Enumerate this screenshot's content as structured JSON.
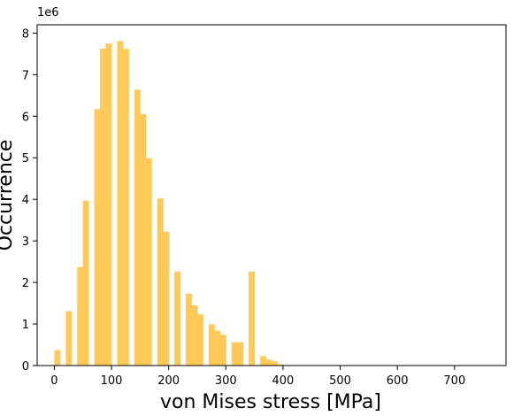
{
  "chart_data": {
    "type": "bar",
    "subtype": "histogram",
    "xlabel": "von Mises stress [MPa]",
    "ylabel": "Occurrence",
    "y_offset_label": "1e6",
    "bar_color": "#FFC857",
    "bin_width": 10,
    "xlim": [
      -30,
      790
    ],
    "ylim": [
      0,
      8.2
    ],
    "xticks": [
      0,
      100,
      200,
      300,
      400,
      500,
      600,
      700
    ],
    "yticks": [
      0,
      1,
      2,
      3,
      4,
      5,
      6,
      7,
      8
    ],
    "bins": [
      {
        "x0": 0,
        "x1": 10,
        "value": 0.37
      },
      {
        "x0": 10,
        "x1": 20,
        "value": 0.01
      },
      {
        "x0": 20,
        "x1": 30,
        "value": 1.31
      },
      {
        "x0": 30,
        "x1": 40,
        "value": 0.01
      },
      {
        "x0": 40,
        "x1": 50,
        "value": 2.37
      },
      {
        "x0": 50,
        "x1": 60,
        "value": 3.97
      },
      {
        "x0": 60,
        "x1": 70,
        "value": 0.01
      },
      {
        "x0": 70,
        "x1": 80,
        "value": 6.17
      },
      {
        "x0": 80,
        "x1": 90,
        "value": 7.63
      },
      {
        "x0": 90,
        "x1": 100,
        "value": 7.75
      },
      {
        "x0": 100,
        "x1": 110,
        "value": 0.01
      },
      {
        "x0": 110,
        "x1": 120,
        "value": 7.81
      },
      {
        "x0": 120,
        "x1": 130,
        "value": 7.62
      },
      {
        "x0": 130,
        "x1": 140,
        "value": 0.01
      },
      {
        "x0": 140,
        "x1": 150,
        "value": 6.64
      },
      {
        "x0": 150,
        "x1": 160,
        "value": 6.05
      },
      {
        "x0": 160,
        "x1": 170,
        "value": 4.99
      },
      {
        "x0": 170,
        "x1": 180,
        "value": 0.01
      },
      {
        "x0": 180,
        "x1": 190,
        "value": 4.02
      },
      {
        "x0": 190,
        "x1": 200,
        "value": 3.22
      },
      {
        "x0": 200,
        "x1": 210,
        "value": 0.01
      },
      {
        "x0": 210,
        "x1": 220,
        "value": 2.26
      },
      {
        "x0": 220,
        "x1": 230,
        "value": 0.01
      },
      {
        "x0": 230,
        "x1": 240,
        "value": 1.73
      },
      {
        "x0": 240,
        "x1": 250,
        "value": 1.45
      },
      {
        "x0": 250,
        "x1": 260,
        "value": 1.23
      },
      {
        "x0": 260,
        "x1": 270,
        "value": 0.01
      },
      {
        "x0": 270,
        "x1": 280,
        "value": 0.99
      },
      {
        "x0": 280,
        "x1": 290,
        "value": 0.84
      },
      {
        "x0": 290,
        "x1": 300,
        "value": 0.74
      },
      {
        "x0": 300,
        "x1": 310,
        "value": 0.01
      },
      {
        "x0": 310,
        "x1": 320,
        "value": 0.56
      },
      {
        "x0": 320,
        "x1": 330,
        "value": 0.56
      },
      {
        "x0": 330,
        "x1": 340,
        "value": 0.01
      },
      {
        "x0": 340,
        "x1": 350,
        "value": 2.26
      },
      {
        "x0": 350,
        "x1": 360,
        "value": 0.01
      },
      {
        "x0": 360,
        "x1": 370,
        "value": 0.23
      },
      {
        "x0": 370,
        "x1": 380,
        "value": 0.14
      },
      {
        "x0": 380,
        "x1": 390,
        "value": 0.1
      },
      {
        "x0": 390,
        "x1": 400,
        "value": 0.03
      },
      {
        "x0": 400,
        "x1": 410,
        "value": 0.01
      },
      {
        "x0": 410,
        "x1": 420,
        "value": 0.01
      }
    ]
  }
}
